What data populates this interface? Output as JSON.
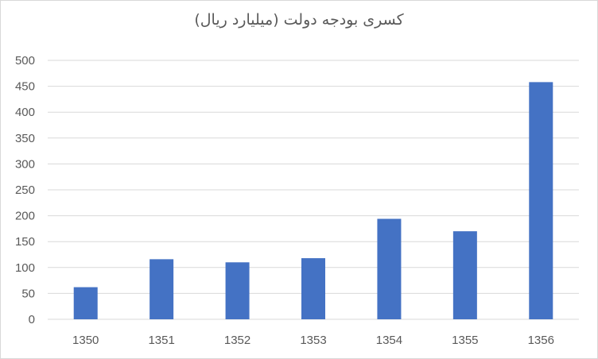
{
  "chart_data": {
    "type": "bar",
    "title": "کسری بودجه دولت (میلیارد ریال)",
    "categories": [
      "1350",
      "1351",
      "1352",
      "1353",
      "1354",
      "1355",
      "1356"
    ],
    "values": [
      62,
      116,
      110,
      118,
      194,
      170,
      458
    ],
    "ylim": [
      0,
      500
    ],
    "yticks": [
      0,
      50,
      100,
      150,
      200,
      250,
      300,
      350,
      400,
      450,
      500
    ],
    "xlabel": "",
    "ylabel": "",
    "grid": true,
    "legend": "none",
    "colors": {
      "bar": "#4472c4",
      "grid": "#d9d9d9",
      "text": "#595959"
    }
  }
}
